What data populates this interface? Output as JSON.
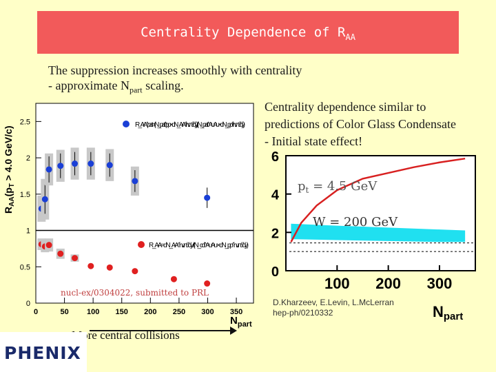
{
  "slide": {
    "title": "Centrality Dependence of R",
    "title_sub": "AA",
    "summary_line1": "The suppression increases smoothly with centrality",
    "summary_line2_pre": "- approximate N",
    "summary_line2_sub": "part",
    "summary_line2_post": " scaling.",
    "cgc_line1": "Centrality dependence similar to",
    "cgc_line2": "predictions of Color Glass Condensate",
    "cgc_line3": "- Initial state effect!",
    "more_central": "More central collisions",
    "logo": "PHENIX"
  },
  "chart_data": [
    {
      "type": "scatter",
      "ylabel": "R",
      "ylabel_sub": "AA",
      "ylabel_cond": "(p",
      "ylabel_cond_sub": "T",
      "ylabel_tail": " > 4.0 GeV/c)",
      "xlabel": "N",
      "xlabel_sub": "part",
      "xlim": [
        0,
        380
      ],
      "ylim": [
        0,
        2.75
      ],
      "x_ticks": [
        "0",
        "50",
        "100",
        "150",
        "200",
        "250",
        "300",
        "350"
      ],
      "y_ticks": [
        "0",
        "0.5",
        "1",
        "1.5",
        "2",
        "2.5"
      ],
      "reference_line": 1,
      "annotation": "nucl-ex/0304022, submitted to PRL",
      "series": [
        {
          "name": "R_AA^part",
          "color": "#1a3fd6",
          "x": [
            10,
            16,
            23,
            43,
            68,
            96,
            129,
            173,
            299
          ],
          "y": [
            1.3,
            1.43,
            1.84,
            1.89,
            1.92,
            1.92,
            1.9,
            1.68,
            1.45
          ],
          "yerr": [
            0.14,
            0.2,
            0.18,
            0.17,
            0.16,
            0.16,
            0.16,
            0.15,
            0.14
          ],
          "syst": [
            0.18,
            0.28,
            0.22,
            0.22,
            0.22,
            0.22,
            0.22,
            0.2,
            0.0
          ],
          "legend_formula": "R_AA^part = (N_part^pp × dN_AA^inv.π⁰/dy) / (N_part^AuAu × dN_pp^inv.π⁰/dy)"
        },
        {
          "name": "R_AA",
          "color": "#e02020",
          "x": [
            10,
            16,
            23,
            43,
            68,
            96,
            129,
            173,
            241,
            299
          ],
          "y": [
            0.81,
            0.78,
            0.8,
            0.68,
            0.62,
            0.51,
            0.49,
            0.44,
            0.33,
            0.27
          ],
          "yerr": [
            0.03,
            0.03,
            0.03,
            0.02,
            0.02,
            0.02,
            0.02,
            0.02,
            0.02,
            0.02
          ],
          "syst": [
            0.08,
            0.08,
            0.09,
            0.07,
            0.05,
            0.0,
            0.0,
            0.0,
            0.0,
            0.0
          ],
          "legend_formula": "R_AA = dN_AA^inv.π⁰/dy / (N_coll^AuAu × dN_pp^inv.π⁰/dy)"
        }
      ]
    },
    {
      "type": "line",
      "title": "",
      "citation_line1": "D.Kharzeev, E.Levin, L.McLerran",
      "citation_line2": "hep-ph/0210332",
      "xlabel": "N",
      "xlabel_sub": "part",
      "xlim": [
        0,
        370
      ],
      "ylim": [
        0,
        6
      ],
      "x_ticks": [
        "100",
        "200",
        "300"
      ],
      "y_ticks": [
        "0",
        "2",
        "4",
        "6"
      ],
      "label_pt": "p",
      "label_pt_sub": "t",
      "label_pt_value": " = 4.5 GeV",
      "label_w": "W = 200 GeV",
      "series": [
        {
          "name": "p_t = 4.5 GeV",
          "color": "#d82020",
          "x": [
            10,
            30,
            60,
            100,
            150,
            200,
            250,
            300,
            350
          ],
          "y": [
            1.5,
            2.5,
            3.4,
            4.2,
            4.8,
            5.1,
            5.4,
            5.65,
            5.85
          ]
        },
        {
          "name": "W = 200 GeV band",
          "color": "#20e0f0",
          "x": [
            10,
            100,
            200,
            300,
            350
          ],
          "ylow": [
            1.65,
            1.6,
            1.55,
            1.5,
            1.5
          ],
          "yhigh": [
            2.45,
            2.35,
            2.25,
            2.15,
            2.1
          ]
        }
      ]
    }
  ]
}
